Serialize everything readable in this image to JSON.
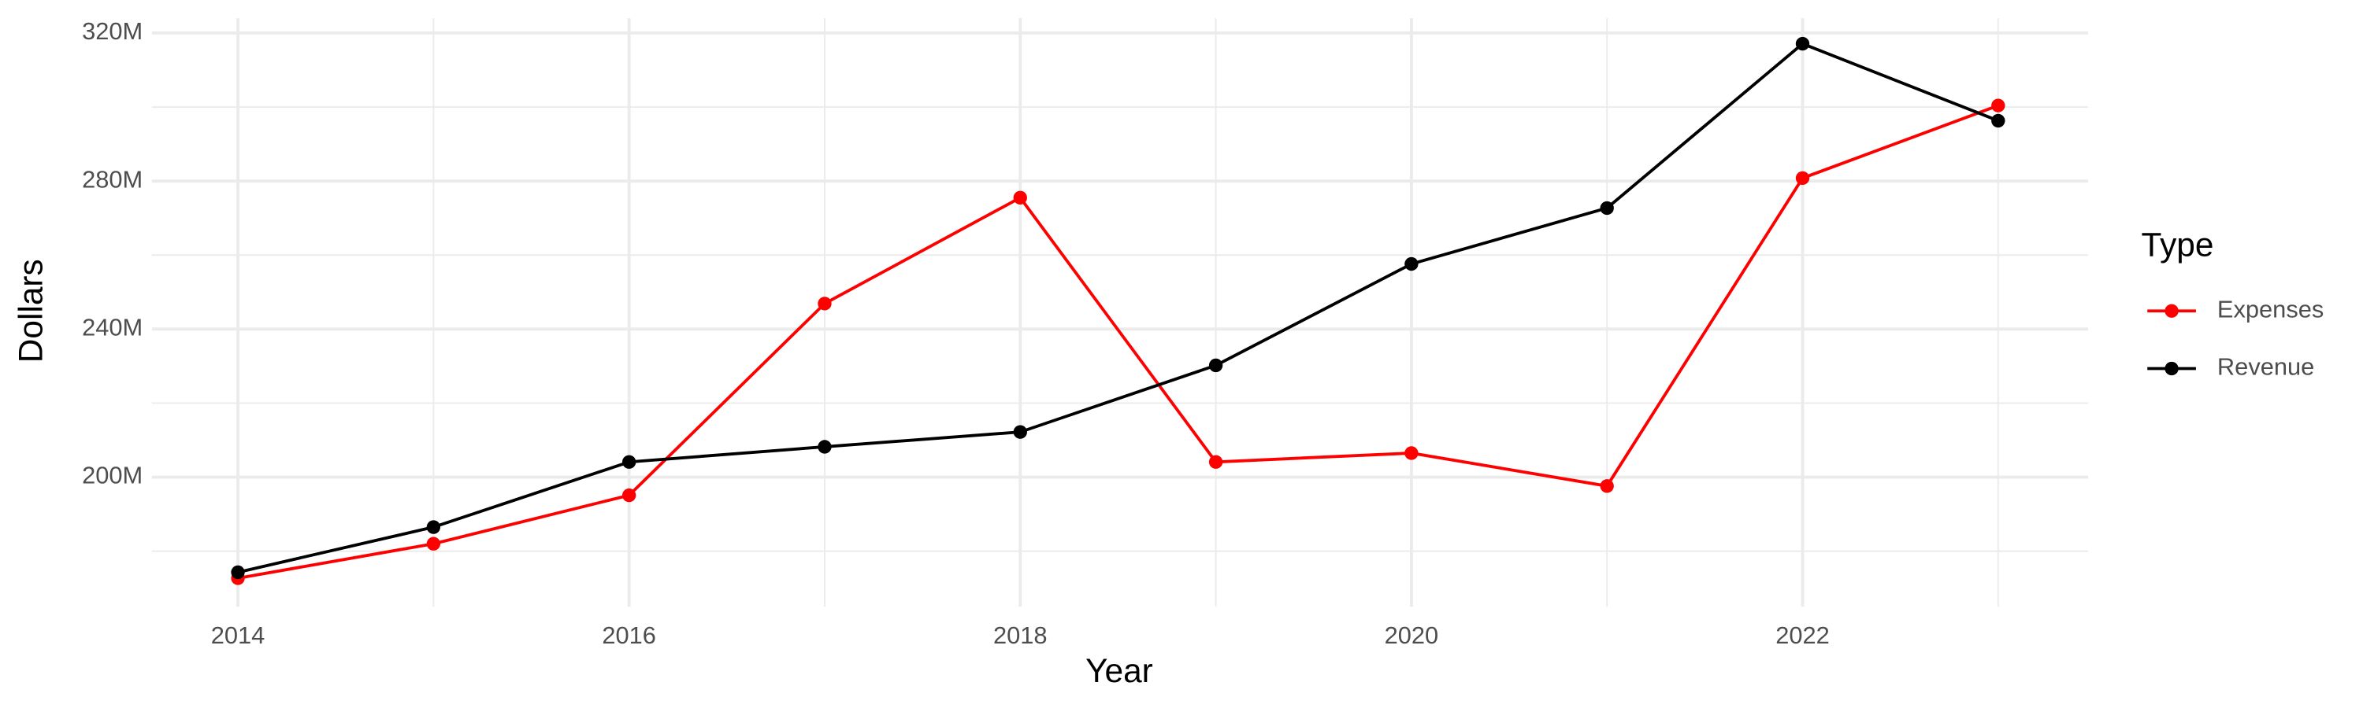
{
  "chart_data": {
    "type": "line",
    "x_label": "Year",
    "y_label": "Dollars",
    "legend_title": "Type",
    "x": [
      2014,
      2015,
      2016,
      2017,
      2018,
      2019,
      2020,
      2021,
      2022,
      2023
    ],
    "series": [
      {
        "name": "Expenses",
        "color": "#ff0000",
        "values": [
          172700000,
          182000000,
          195100000,
          246900000,
          275500000,
          204100000,
          206500000,
          197600000,
          280800000,
          300400000
        ]
      },
      {
        "name": "Revenue",
        "color": "#000000",
        "values": [
          174300000,
          186500000,
          204100000,
          208200000,
          212200000,
          230200000,
          257600000,
          272700000,
          317100000,
          296300000
        ]
      }
    ],
    "xlim": [
      2013.56,
      2023.46
    ],
    "xticks": [
      2014,
      2016,
      2018,
      2020,
      2022
    ],
    "ylim": [
      165000000,
      324000000
    ],
    "yticks": [
      {
        "value": 200000000,
        "label": "200M"
      },
      {
        "value": 240000000,
        "label": "240M"
      },
      {
        "value": 280000000,
        "label": "280M"
      },
      {
        "value": 320000000,
        "label": "320M"
      }
    ],
    "grid": true,
    "legend_position": "right"
  }
}
